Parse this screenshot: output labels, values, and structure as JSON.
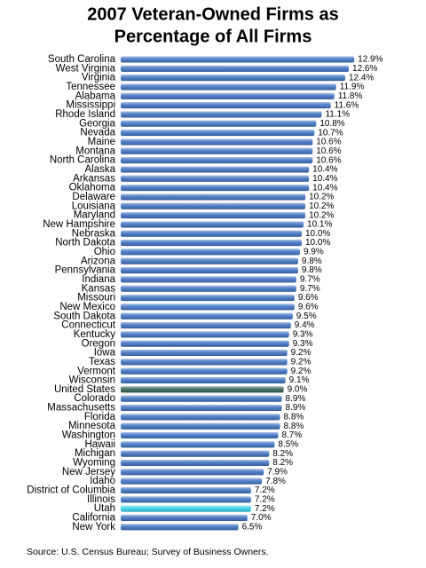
{
  "chart_data": {
    "type": "hbar",
    "title": [
      "2007 Veteran-Owned Firms as",
      "Percentage of All Firms"
    ],
    "categories": [
      "South Carolina",
      "West Virginia",
      "Virginia",
      "Tennessee",
      "Alabama",
      "Mississippi",
      "Rhode Island",
      "Georgia",
      "Nevada",
      "Maine",
      "Montana",
      "North Carolina",
      "Alaska",
      "Arkansas",
      "Oklahoma",
      "Delaware",
      "Louisiana",
      "Maryland",
      "New Hampshire",
      "Nebraska",
      "North Dakota",
      "Ohio",
      "Arizona",
      "Pennsylvania",
      "Indiana",
      "Kansas",
      "Missouri",
      "New Mexico",
      "South Dakota",
      "Connecticut",
      "Kentucky",
      "Oregon",
      "Iowa",
      "Texas",
      "Vermont",
      "Wisconsin",
      "United States",
      "Colorado",
      "Massachusetts",
      "Florida",
      "Minnesota",
      "Washington",
      "Hawaii",
      "Michigan",
      "Wyoming",
      "New Jersey",
      "Idaho",
      "District of Columbia",
      "Illinois",
      "Utah",
      "California",
      "New York"
    ],
    "values": [
      12.9,
      12.6,
      12.4,
      11.9,
      11.8,
      11.6,
      11.1,
      10.8,
      10.7,
      10.6,
      10.6,
      10.6,
      10.4,
      10.4,
      10.4,
      10.2,
      10.2,
      10.2,
      10.1,
      10.0,
      10.0,
      9.9,
      9.8,
      9.8,
      9.7,
      9.7,
      9.6,
      9.6,
      9.5,
      9.4,
      9.3,
      9.3,
      9.2,
      9.2,
      9.2,
      9.1,
      9.0,
      8.9,
      8.9,
      8.8,
      8.8,
      8.7,
      8.5,
      8.2,
      8.2,
      7.9,
      7.8,
      7.2,
      7.2,
      7.2,
      7.0,
      6.5
    ],
    "value_labels": [
      "12.9%",
      "12.6%",
      "12.4%",
      "11.9%",
      "11.8%",
      "11.6%",
      "11.1%",
      "10.8%",
      "10.7%",
      "10.6%",
      "10.6%",
      "10.6%",
      "10.4%",
      "10.4%",
      "10.4%",
      "10.2%",
      "10.2%",
      "10.2%",
      "10.1%",
      "10.0%",
      "10.0%",
      "9.9%",
      "9.8%",
      "9.8%",
      "9.7%",
      "9.7%",
      "9.6%",
      "9.6%",
      "9.5%",
      "9.4%",
      "9.3%",
      "9.3%",
      "9.2%",
      "9.2%",
      "9.2%",
      "9.1%",
      "9.0%",
      "8.9%",
      "8.9%",
      "8.8%",
      "8.8%",
      "8.7%",
      "8.5%",
      "8.2%",
      "8.2%",
      "7.9%",
      "7.8%",
      "7.2%",
      "7.2%",
      "7.2%",
      "7.0%",
      "6.5%"
    ],
    "colors": [
      "#3b6fc0",
      "#3b6fc0",
      "#3b6fc0",
      "#3b6fc0",
      "#3b6fc0",
      "#3b6fc0",
      "#3b6fc0",
      "#3b6fc0",
      "#3b6fc0",
      "#3b6fc0",
      "#3b6fc0",
      "#3b6fc0",
      "#3b6fc0",
      "#3b6fc0",
      "#3b6fc0",
      "#3b6fc0",
      "#3b6fc0",
      "#3b6fc0",
      "#3b6fc0",
      "#3b6fc0",
      "#3b6fc0",
      "#3b6fc0",
      "#3b6fc0",
      "#3b6fc0",
      "#3b6fc0",
      "#3b6fc0",
      "#3b6fc0",
      "#3b6fc0",
      "#3b6fc0",
      "#3b6fc0",
      "#3b6fc0",
      "#3b6fc0",
      "#3b6fc0",
      "#3b6fc0",
      "#3b6fc0",
      "#3b6fc0",
      "#2e5e52",
      "#3b6fc0",
      "#3b6fc0",
      "#3b6fc0",
      "#3b6fc0",
      "#3b6fc0",
      "#3b6fc0",
      "#3b6fc0",
      "#3b6fc0",
      "#3b6fc0",
      "#3b6fc0",
      "#3b6fc0",
      "#3b6fc0",
      "#2fd0e8",
      "#3b6fc0",
      "#3b6fc0"
    ],
    "source": "Source: U.S. Census Bureau; Survey of Business Owners."
  }
}
